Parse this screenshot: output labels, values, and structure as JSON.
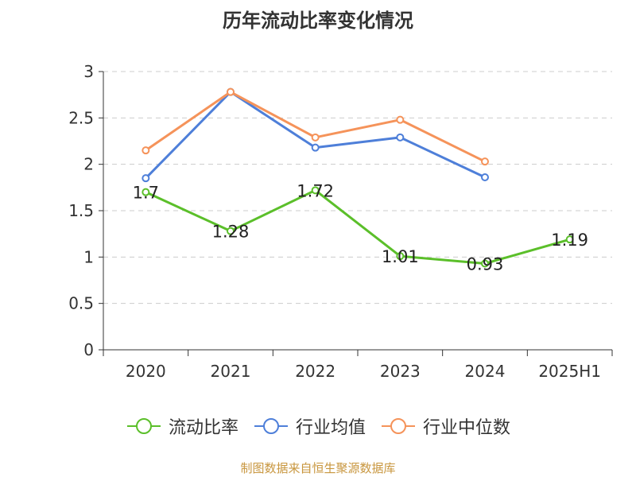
{
  "title": "历年流动比率变化情况",
  "source_note": "制图数据来自恒生聚源数据库",
  "colors": {
    "current_ratio": "#5bbf2a",
    "industry_mean": "#4e7fd9",
    "industry_median": "#f5935a",
    "grid": "#cccccc",
    "axis": "#333333",
    "text": "#333333",
    "source": "#c8963e"
  },
  "chart_data": {
    "type": "line",
    "categories": [
      "2020",
      "2021",
      "2022",
      "2023",
      "2024",
      "2025H1"
    ],
    "ylim": [
      0,
      3
    ],
    "yticks": [
      "0",
      "0.5",
      "1",
      "1.5",
      "2",
      "2.5",
      "3"
    ],
    "grid": true,
    "legend_position": "bottom",
    "series": [
      {
        "name": "流动比率",
        "color": "#5bbf2a",
        "values": [
          1.7,
          1.28,
          1.72,
          1.01,
          0.93,
          1.19
        ],
        "labels": [
          "1.7",
          "1.28",
          "1.72",
          "1.01",
          "0.93",
          "1.19"
        ]
      },
      {
        "name": "行业均值",
        "color": "#4e7fd9",
        "values": [
          1.85,
          2.78,
          2.18,
          2.29,
          1.86,
          null
        ]
      },
      {
        "name": "行业中位数",
        "color": "#f5935a",
        "values": [
          2.15,
          2.78,
          2.29,
          2.48,
          2.03,
          null
        ]
      }
    ]
  }
}
